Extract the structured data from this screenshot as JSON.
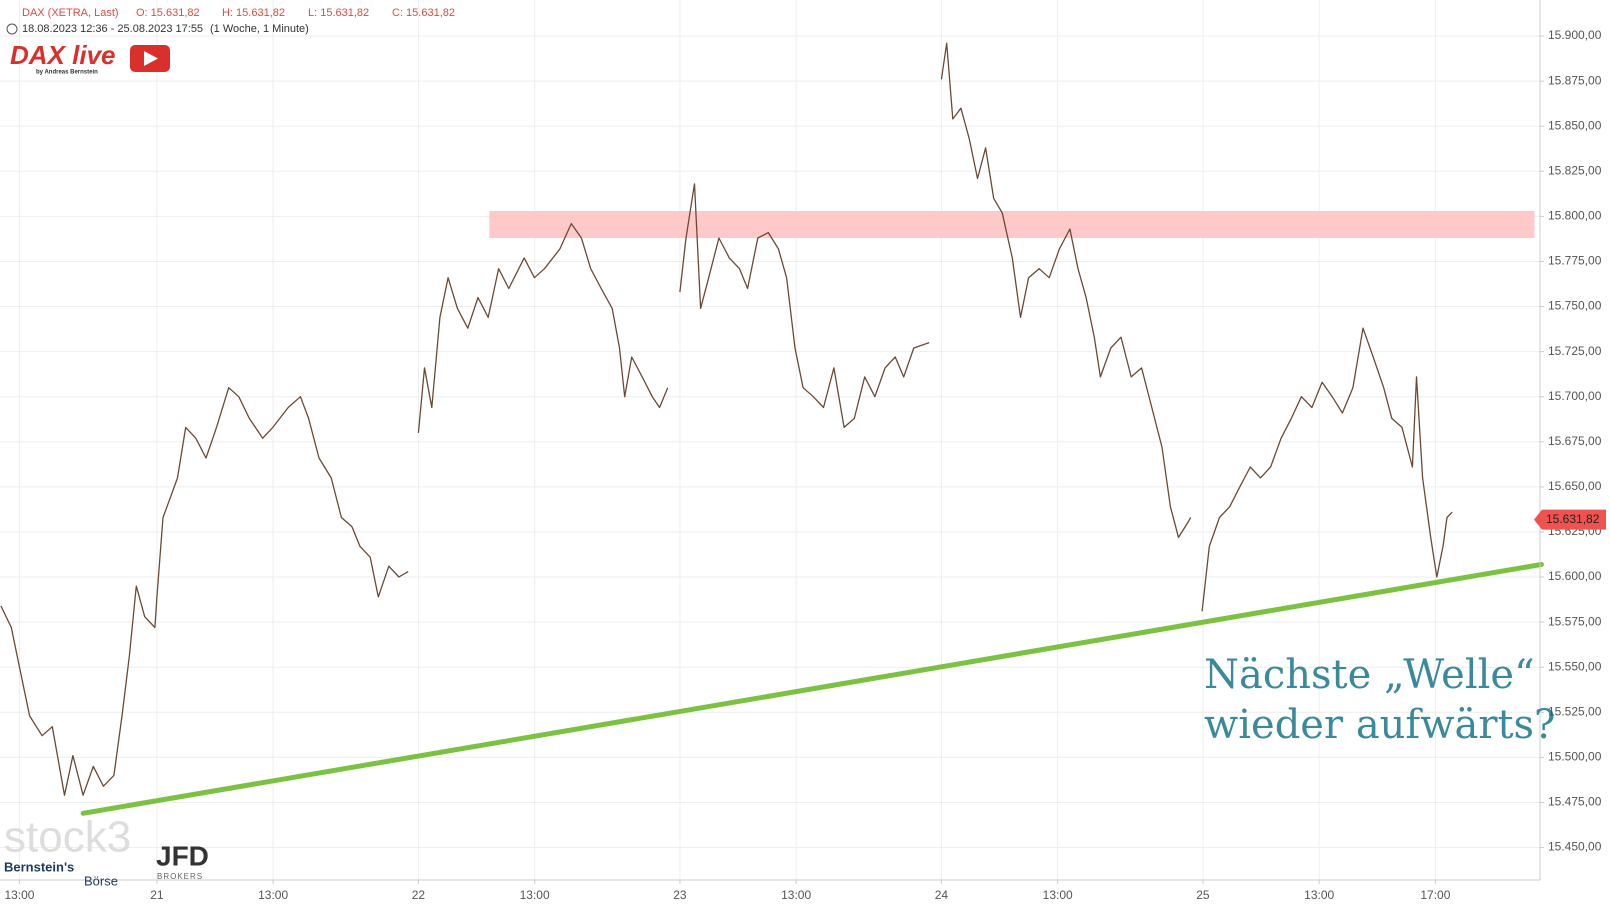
{
  "chart_data": {
    "type": "line",
    "header": {
      "instrument": "DAX (XETRA, Last)",
      "open": "O: 15.631,82",
      "high": "H: 15.631,82",
      "low": "L: 15.631,82",
      "close": "C: 15.631,82",
      "range": "18.08.2023 12:36 - 25.08.2023 17:55",
      "interval": "(1 Woche, 1 Minute)"
    },
    "logos": {
      "dax_live": "DAX live",
      "dax_live_by": "by Andreas Bernstein",
      "stock3": "stock3",
      "bernstein": "Bernstein's",
      "boerse": "Börse",
      "jfd": "JFD",
      "jfd_sub": "BROKERS"
    },
    "annotation": [
      "Nächste „Welle“",
      "wieder aufwärts?"
    ],
    "last_price": {
      "value": 15631.82,
      "label": "15.631,82",
      "color": "#ef5350"
    },
    "zone": {
      "x": [
        11.44,
        47.41
      ],
      "y": [
        15788,
        15803
      ],
      "color": "#ffc9c9"
    },
    "trendline": {
      "x": [
        -2.54,
        47.65
      ],
      "y": [
        15469,
        15607
      ],
      "color": "#7cc242"
    },
    "x": [
      -5.37,
      -5.01,
      -4.73,
      -4.38,
      -3.95,
      -3.6,
      -3.18,
      -2.89,
      -2.54,
      -2.19,
      -1.84,
      -1.48,
      -1.2,
      -0.95,
      -0.71,
      -0.42,
      -0.07,
      0,
      0.21,
      0.46,
      0.71,
      0.99,
      1.34,
      1.69,
      2.05,
      2.47,
      2.82,
      3.18,
      3.64,
      3.99,
      4.52,
      4.94,
      5.22,
      5.58,
      6,
      6.35,
      6.71,
      6.99,
      7.34,
      7.62,
      7.98,
      8.33,
      8.65,
      8.8,
      9,
      9.21,
      9.46,
      9.74,
      10.02,
      10.34,
      10.7,
      11.05,
      11.4,
      11.76,
      12.11,
      12.64,
      12.99,
      13.34,
      13.87,
      14.26,
      14.61,
      14.93,
      15.29,
      15.67,
      15.92,
      16.1,
      16.34,
      16.7,
      17.05,
      17.3,
      17.58,
      17.8,
      18,
      18.21,
      18.5,
      18.71,
      18.99,
      19.34,
      19.7,
      20.05,
      20.33,
      20.68,
      21.04,
      21.39,
      21.67,
      21.96,
      22.24,
      22.59,
      22.94,
      23.3,
      23.65,
      24,
      24.36,
      24.71,
      25.06,
      25.41,
      25.7,
      26.05,
      26.58,
      26.8,
      27,
      27.18,
      27.39,
      27.67,
      27.96,
      28.24,
      28.52,
      28.8,
      29.09,
      29.44,
      29.72,
      30,
      30.36,
      30.71,
      31.06,
      31.42,
      31.7,
      31.98,
      32.26,
      32.47,
      32.83,
      33.18,
      33.53,
      33.89,
      34.24,
      34.59,
      34.88,
      35.16,
      35.51,
      35.58,
      35.8,
      35.97,
      36.22,
      36.57,
      36.92,
      37.27,
      37.63,
      37.98,
      38.33,
      38.69,
      39.04,
      39.39,
      39.75,
      40.1,
      40.45,
      40.8,
      41.16,
      41.51,
      41.86,
      42.22,
      42.5,
      42.85,
      43.21,
      43.35,
      43.56,
      43.84,
      44.05,
      44.26,
      44.4,
      44.58
    ],
    "series": [
      {
        "name": "DAX",
        "color": "#6b4a35",
        "values": [
          15584,
          15572,
          15550,
          15523,
          15512,
          15517,
          15479,
          15501,
          15479,
          15495,
          15484,
          15490,
          15523,
          15556,
          15595,
          15578,
          15572,
          15589,
          15633,
          15644,
          15655,
          15683,
          15677,
          15666,
          15683,
          15705,
          15700,
          15688,
          15677,
          15683,
          15694,
          15700,
          15688,
          15666,
          15655,
          15633,
          15628,
          15617,
          15611,
          15589,
          15606,
          15600,
          15603,
          null,
          15680,
          15716,
          15694,
          15744,
          15766,
          15749,
          15738,
          15755,
          15744,
          15771,
          15760,
          15777,
          15766,
          15771,
          15782,
          15796,
          15788,
          15771,
          15760,
          15749,
          15727,
          15700,
          15722,
          15711,
          15700,
          15694,
          15705,
          null,
          15758,
          15788,
          15818,
          15749,
          15766,
          15788,
          15777,
          15771,
          15760,
          15788,
          15791,
          15782,
          15766,
          15727,
          15705,
          15700,
          15694,
          15716,
          15683,
          15688,
          15711,
          15700,
          15716,
          15722,
          15711,
          15727,
          15730,
          null,
          15876,
          15896,
          15854,
          15860,
          15843,
          15821,
          15838,
          15810,
          15802,
          15777,
          15744,
          15766,
          15771,
          15766,
          15782,
          15793,
          15771,
          15755,
          15733,
          15711,
          15727,
          15733,
          15711,
          15716,
          15694,
          15672,
          15639,
          15622,
          15631,
          15633,
          null,
          15581,
          15617,
          15633,
          15639,
          15650,
          15661,
          15655,
          15661,
          15677,
          15688,
          15700,
          15694,
          15708,
          15700,
          15691,
          15705,
          15738,
          15722,
          15705,
          15688,
          15683,
          15661,
          15711,
          15655,
          15622,
          15600,
          15617,
          15633,
          15636
        ]
      }
    ],
    "xlim": [
      -5.4,
      47.6
    ],
    "ylim": [
      15432,
      15920
    ],
    "xticks": [
      {
        "value": -4.73,
        "label": "13:00"
      },
      {
        "value": 0,
        "label": "21"
      },
      {
        "value": 4,
        "label": "13:00"
      },
      {
        "value": 9,
        "label": "22"
      },
      {
        "value": 13,
        "label": "13:00"
      },
      {
        "value": 18,
        "label": "23"
      },
      {
        "value": 22,
        "label": "13:00"
      },
      {
        "value": 27,
        "label": "24"
      },
      {
        "value": 31,
        "label": "13:00"
      },
      {
        "value": 36,
        "label": "25"
      },
      {
        "value": 40,
        "label": "13:00"
      },
      {
        "value": 44,
        "label": "17:00"
      }
    ],
    "yticks": [
      {
        "value": 15450,
        "label": "15.450,00"
      },
      {
        "value": 15475,
        "label": "15.475,00"
      },
      {
        "value": 15500,
        "label": "15.500,00"
      },
      {
        "value": 15525,
        "label": "15.525,00"
      },
      {
        "value": 15550,
        "label": "15.550,00"
      },
      {
        "value": 15575,
        "label": "15.575,00"
      },
      {
        "value": 15600,
        "label": "15.600,00"
      },
      {
        "value": 15625,
        "label": "15.625,00"
      },
      {
        "value": 15650,
        "label": "15.650,00"
      },
      {
        "value": 15675,
        "label": "15.675,00"
      },
      {
        "value": 15700,
        "label": "15.700,00"
      },
      {
        "value": 15725,
        "label": "15.725,00"
      },
      {
        "value": 15750,
        "label": "15.750,00"
      },
      {
        "value": 15775,
        "label": "15.775,00"
      },
      {
        "value": 15800,
        "label": "15.800,00"
      },
      {
        "value": 15825,
        "label": "15.825,00"
      },
      {
        "value": 15850,
        "label": "15.850,00"
      },
      {
        "value": 15875,
        "label": "15.875,00"
      },
      {
        "value": 15900,
        "label": "15.900,00"
      }
    ],
    "grid": true
  }
}
